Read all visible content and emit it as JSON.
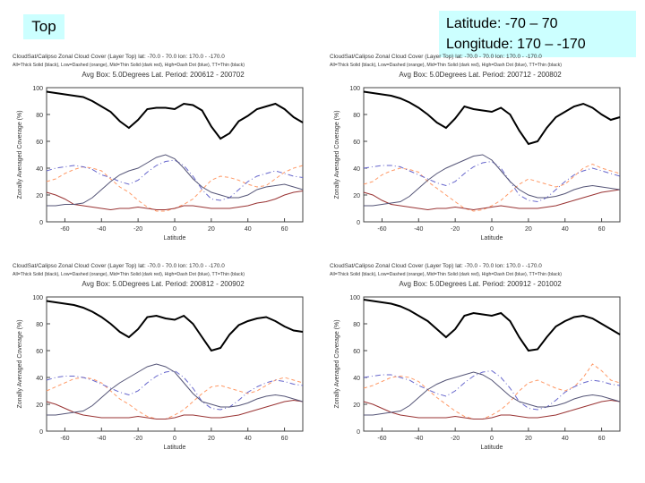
{
  "labels": {
    "top": "Top",
    "latitude": "Latitude:   -70 – 70",
    "longitude": "Longitude: 170 – -170"
  },
  "chart_data": [
    {
      "type": "line",
      "title": "CloudSat/Calipso Zonal Cloud Cover (Layer Top) lat: -70.0 - 70.0  lon: 170.0 - -170.0",
      "subtitle": "All=Thick Solid (black), Low=Dashed (orange), Mid=Thin Solid (dark red), High=Dash Dot (blue), TT=Thin (black)",
      "period": "Avg Box: 5.0Degrees Lat. Period: 200612 - 200702",
      "xlabel": "Latitude",
      "ylabel": "Zonally Averaged Coverage (%)",
      "xlim": [
        -70,
        70
      ],
      "ylim": [
        0,
        100
      ],
      "xticks": [
        -60,
        -40,
        -20,
        0,
        20,
        40,
        60
      ],
      "yticks": [
        0,
        20,
        40,
        60,
        80,
        100
      ],
      "x": [
        -70,
        -65,
        -60,
        -55,
        -50,
        -45,
        -40,
        -35,
        -30,
        -25,
        -20,
        -15,
        -10,
        -5,
        0,
        5,
        10,
        15,
        20,
        25,
        30,
        35,
        40,
        45,
        50,
        55,
        60,
        65,
        70
      ],
      "series": [
        {
          "name": "All",
          "color": "#000000",
          "width": 2,
          "dash": "",
          "values": [
            97,
            96,
            95,
            94,
            93,
            90,
            86,
            82,
            75,
            70,
            76,
            84,
            85,
            85,
            84,
            88,
            87,
            83,
            71,
            62,
            66,
            75,
            79,
            84,
            86,
            88,
            84,
            78,
            74
          ]
        },
        {
          "name": "Low",
          "color": "#ff9966",
          "width": 1,
          "dash": "4,3",
          "values": [
            30,
            32,
            36,
            39,
            41,
            40,
            38,
            32,
            26,
            22,
            16,
            11,
            8,
            8,
            10,
            13,
            17,
            24,
            31,
            34,
            33,
            31,
            28,
            26,
            27,
            32,
            37,
            40,
            42
          ]
        },
        {
          "name": "Mid",
          "color": "#993333",
          "width": 1,
          "dash": "",
          "values": [
            22,
            20,
            17,
            13,
            12,
            11,
            10,
            9,
            10,
            10,
            11,
            10,
            9,
            9,
            10,
            12,
            12,
            11,
            10,
            10,
            10,
            11,
            12,
            14,
            15,
            17,
            20,
            22,
            23
          ]
        },
        {
          "name": "High",
          "color": "#6666cc",
          "width": 1,
          "dash": "6,3,1,3",
          "values": [
            38,
            40,
            41,
            42,
            41,
            39,
            35,
            33,
            30,
            28,
            31,
            37,
            42,
            45,
            46,
            42,
            34,
            24,
            17,
            16,
            18,
            24,
            30,
            34,
            36,
            38,
            36,
            34,
            33
          ]
        },
        {
          "name": "TT",
          "color": "#555577",
          "width": 1,
          "dash": "",
          "values": [
            12,
            12,
            13,
            13,
            14,
            18,
            24,
            30,
            35,
            38,
            40,
            44,
            48,
            50,
            47,
            40,
            32,
            26,
            22,
            20,
            18,
            18,
            20,
            24,
            26,
            27,
            28,
            26,
            24
          ]
        }
      ]
    },
    {
      "type": "line",
      "title": "CloudSat/Calipso Zonal Cloud Cover (Layer Top) lat: -70.0 - 70.0  lon: 170.0 - -170.0",
      "subtitle": "All=Thick Solid (black), Low=Dashed (orange), Mid=Thin Solid (dark red), High=Dash Dot (blue), TT=Thin (black)",
      "period": "Avg Box: 5.0Degrees Lat. Period: 200712 - 200802",
      "xlabel": "Latitude",
      "ylabel": "Zonally Averaged Coverage (%)",
      "xlim": [
        -70,
        70
      ],
      "ylim": [
        0,
        100
      ],
      "xticks": [
        -60,
        -40,
        -20,
        0,
        20,
        40,
        60
      ],
      "yticks": [
        0,
        20,
        40,
        60,
        80,
        100
      ],
      "x": [
        -70,
        -65,
        -60,
        -55,
        -50,
        -45,
        -40,
        -35,
        -30,
        -25,
        -20,
        -15,
        -10,
        -5,
        0,
        5,
        10,
        15,
        20,
        25,
        30,
        35,
        40,
        45,
        50,
        55,
        60,
        65,
        70
      ],
      "series": [
        {
          "name": "All",
          "color": "#000000",
          "width": 2,
          "dash": "",
          "values": [
            97,
            96,
            95,
            94,
            92,
            89,
            85,
            80,
            74,
            70,
            77,
            86,
            84,
            83,
            82,
            85,
            80,
            68,
            58,
            60,
            70,
            78,
            82,
            86,
            88,
            85,
            80,
            76,
            78
          ]
        },
        {
          "name": "Low",
          "color": "#ff9966",
          "width": 1,
          "dash": "4,3",
          "values": [
            28,
            30,
            35,
            38,
            40,
            39,
            37,
            30,
            25,
            20,
            15,
            10,
            8,
            9,
            12,
            16,
            22,
            28,
            32,
            30,
            28,
            26,
            28,
            34,
            40,
            43,
            40,
            38,
            36
          ]
        },
        {
          "name": "Mid",
          "color": "#993333",
          "width": 1,
          "dash": "",
          "values": [
            22,
            20,
            16,
            13,
            12,
            11,
            10,
            9,
            10,
            10,
            11,
            10,
            9,
            10,
            11,
            12,
            11,
            10,
            10,
            10,
            11,
            12,
            14,
            16,
            18,
            20,
            22,
            23,
            24
          ]
        },
        {
          "name": "High",
          "color": "#6666cc",
          "width": 1,
          "dash": "6,3,1,3",
          "values": [
            40,
            41,
            42,
            42,
            41,
            38,
            35,
            32,
            29,
            27,
            30,
            36,
            41,
            44,
            45,
            40,
            30,
            20,
            16,
            15,
            18,
            24,
            30,
            35,
            38,
            40,
            38,
            36,
            34
          ]
        },
        {
          "name": "TT",
          "color": "#555577",
          "width": 1,
          "dash": "",
          "values": [
            12,
            12,
            13,
            14,
            15,
            19,
            25,
            31,
            36,
            40,
            43,
            46,
            49,
            50,
            46,
            38,
            30,
            24,
            20,
            18,
            18,
            19,
            21,
            24,
            26,
            27,
            26,
            25,
            24
          ]
        }
      ]
    },
    {
      "type": "line",
      "title": "CloudSat/Calipso Zonal Cloud Cover (Layer Top) lat: -70.0 - 70.0  lon: 170.0 - -170.0",
      "subtitle": "All=Thick Solid (black), Low=Dashed (orange), Mid=Thin Solid (dark red), High=Dash Dot (blue), TT=Thin (black)",
      "period": "Avg Box: 5.0Degrees Lat. Period: 200812 - 200902",
      "xlabel": "Latitude",
      "ylabel": "Zonally Averaged Coverage (%)",
      "xlim": [
        -70,
        70
      ],
      "ylim": [
        0,
        100
      ],
      "xticks": [
        -60,
        -40,
        -20,
        0,
        20,
        40,
        60
      ],
      "yticks": [
        0,
        20,
        40,
        60,
        80,
        100
      ],
      "x": [
        -70,
        -65,
        -60,
        -55,
        -50,
        -45,
        -40,
        -35,
        -30,
        -25,
        -20,
        -15,
        -10,
        -5,
        0,
        5,
        10,
        15,
        20,
        25,
        30,
        35,
        40,
        45,
        50,
        55,
        60,
        65,
        70
      ],
      "series": [
        {
          "name": "All",
          "color": "#000000",
          "width": 2,
          "dash": "",
          "values": [
            97,
            96,
            95,
            94,
            92,
            89,
            85,
            80,
            74,
            70,
            76,
            85,
            86,
            84,
            83,
            86,
            80,
            70,
            60,
            62,
            72,
            79,
            82,
            84,
            85,
            82,
            78,
            75,
            74
          ]
        },
        {
          "name": "Low",
          "color": "#ff9966",
          "width": 1,
          "dash": "4,3",
          "values": [
            30,
            33,
            36,
            39,
            40,
            39,
            36,
            30,
            24,
            20,
            15,
            11,
            9,
            9,
            12,
            16,
            22,
            28,
            33,
            34,
            32,
            30,
            28,
            30,
            34,
            38,
            40,
            38,
            36
          ]
        },
        {
          "name": "Mid",
          "color": "#993333",
          "width": 1,
          "dash": "",
          "values": [
            22,
            20,
            17,
            14,
            12,
            11,
            10,
            10,
            10,
            10,
            11,
            10,
            9,
            9,
            10,
            12,
            12,
            11,
            10,
            10,
            11,
            12,
            14,
            16,
            18,
            20,
            22,
            23,
            22
          ]
        },
        {
          "name": "High",
          "color": "#6666cc",
          "width": 1,
          "dash": "6,3,1,3",
          "values": [
            38,
            40,
            41,
            41,
            40,
            38,
            35,
            32,
            29,
            27,
            30,
            36,
            41,
            44,
            45,
            40,
            32,
            22,
            17,
            16,
            18,
            23,
            29,
            33,
            36,
            38,
            37,
            35,
            34
          ]
        },
        {
          "name": "TT",
          "color": "#555577",
          "width": 1,
          "dash": "",
          "values": [
            12,
            12,
            13,
            14,
            15,
            19,
            25,
            31,
            36,
            40,
            44,
            48,
            50,
            48,
            44,
            36,
            28,
            22,
            20,
            18,
            18,
            19,
            21,
            24,
            26,
            27,
            26,
            24,
            22
          ]
        }
      ]
    },
    {
      "type": "line",
      "title": "CloudSat/Calipso Zonal Cloud Cover (Layer Top) lat: -70.0 - 70.0  lon: 170.0 - -170.0",
      "subtitle": "All=Thick Solid (black), Low=Dashed (orange), Mid=Thin Solid (dark red), High=Dash Dot (blue), TT=Thin (black)",
      "period": "Avg Box: 5.0Degrees Lat. Period: 200912 - 201002",
      "xlabel": "Latitude",
      "ylabel": "Zonally Averaged Coverage (%)",
      "xlim": [
        -70,
        70
      ],
      "ylim": [
        0,
        100
      ],
      "xticks": [
        -60,
        -40,
        -20,
        0,
        20,
        40,
        60
      ],
      "yticks": [
        0,
        20,
        40,
        60,
        80,
        100
      ],
      "x": [
        -70,
        -65,
        -60,
        -55,
        -50,
        -45,
        -40,
        -35,
        -30,
        -25,
        -20,
        -15,
        -10,
        -5,
        0,
        5,
        10,
        15,
        20,
        25,
        30,
        35,
        40,
        45,
        50,
        55,
        60,
        65,
        70
      ],
      "series": [
        {
          "name": "All",
          "color": "#000000",
          "width": 2,
          "dash": "",
          "values": [
            98,
            97,
            96,
            95,
            93,
            90,
            86,
            82,
            76,
            70,
            76,
            86,
            88,
            87,
            86,
            88,
            82,
            70,
            60,
            61,
            70,
            78,
            82,
            85,
            86,
            84,
            80,
            76,
            72
          ]
        },
        {
          "name": "Low",
          "color": "#ff9966",
          "width": 1,
          "dash": "4,3",
          "values": [
            32,
            34,
            37,
            40,
            41,
            40,
            37,
            31,
            25,
            20,
            15,
            11,
            9,
            9,
            12,
            16,
            22,
            30,
            36,
            38,
            35,
            32,
            30,
            33,
            40,
            50,
            45,
            38,
            36
          ]
        },
        {
          "name": "Mid",
          "color": "#993333",
          "width": 1,
          "dash": "",
          "values": [
            22,
            20,
            17,
            14,
            12,
            11,
            10,
            10,
            10,
            10,
            11,
            10,
            9,
            9,
            10,
            12,
            12,
            11,
            10,
            10,
            11,
            12,
            14,
            16,
            18,
            20,
            22,
            23,
            22
          ]
        },
        {
          "name": "High",
          "color": "#6666cc",
          "width": 1,
          "dash": "6,3,1,3",
          "values": [
            40,
            41,
            42,
            42,
            40,
            38,
            34,
            31,
            28,
            26,
            30,
            36,
            41,
            44,
            45,
            40,
            32,
            22,
            17,
            16,
            18,
            23,
            29,
            33,
            36,
            38,
            37,
            35,
            34
          ]
        },
        {
          "name": "TT",
          "color": "#555577",
          "width": 1,
          "dash": "",
          "values": [
            12,
            12,
            13,
            14,
            15,
            19,
            25,
            31,
            35,
            38,
            40,
            42,
            44,
            42,
            38,
            32,
            26,
            22,
            20,
            18,
            18,
            19,
            21,
            24,
            26,
            27,
            26,
            24,
            22
          ]
        }
      ]
    }
  ]
}
